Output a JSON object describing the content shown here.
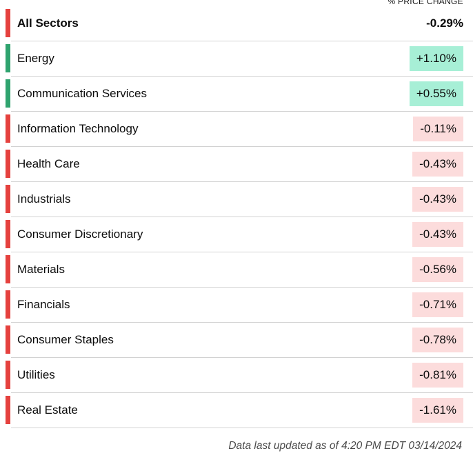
{
  "header": {
    "column_label": "% PRICE CHANGE"
  },
  "table": {
    "rows": [
      {
        "name": "All Sectors",
        "change": "-0.29%",
        "direction": "down",
        "is_total": true
      },
      {
        "name": "Energy",
        "change": "+1.10%",
        "direction": "up"
      },
      {
        "name": "Communication Services",
        "change": "+0.55%",
        "direction": "up"
      },
      {
        "name": "Information Technology",
        "change": "-0.11%",
        "direction": "down"
      },
      {
        "name": "Health Care",
        "change": "-0.43%",
        "direction": "down"
      },
      {
        "name": "Industrials",
        "change": "-0.43%",
        "direction": "down"
      },
      {
        "name": "Consumer Discretionary",
        "change": "-0.43%",
        "direction": "down"
      },
      {
        "name": "Materials",
        "change": "-0.56%",
        "direction": "down"
      },
      {
        "name": "Financials",
        "change": "-0.71%",
        "direction": "down"
      },
      {
        "name": "Consumer Staples",
        "change": "-0.78%",
        "direction": "down"
      },
      {
        "name": "Utilities",
        "change": "-0.81%",
        "direction": "down"
      },
      {
        "name": "Real Estate",
        "change": "-1.61%",
        "direction": "down"
      }
    ]
  },
  "footer": {
    "updated_text": "Data last updated as of 4:20 PM EDT 03/14/2024"
  },
  "colors": {
    "positive_chip_bg": "#a7efd6",
    "negative_chip_bg": "#fcdcdc",
    "positive_bar": "#2fa36e",
    "negative_bar": "#e5413e",
    "divider": "#d2d2d2"
  },
  "chart_data": {
    "type": "table",
    "title": "% PRICE CHANGE",
    "categories": [
      "All Sectors",
      "Energy",
      "Communication Services",
      "Information Technology",
      "Health Care",
      "Industrials",
      "Consumer Discretionary",
      "Materials",
      "Financials",
      "Consumer Staples",
      "Utilities",
      "Real Estate"
    ],
    "values": [
      -0.29,
      1.1,
      0.55,
      -0.11,
      -0.43,
      -0.43,
      -0.43,
      -0.56,
      -0.71,
      -0.78,
      -0.81,
      -1.61
    ],
    "value_unit": "percent",
    "annotations": [
      "Data last updated as of 4:20 PM EDT 03/14/2024"
    ]
  }
}
